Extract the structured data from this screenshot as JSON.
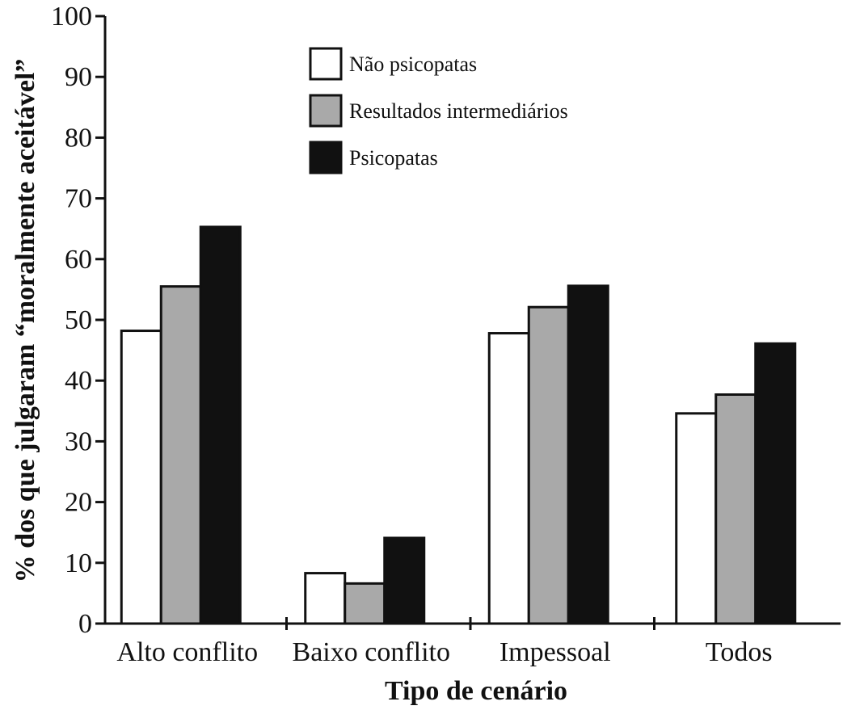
{
  "chart_data": {
    "type": "bar",
    "title": "",
    "xlabel": "Tipo de cenário",
    "ylabel": "% dos que julgaram “moralmente aceitável”",
    "ylim": [
      0,
      100
    ],
    "yticks": [
      0,
      10,
      20,
      30,
      40,
      50,
      60,
      70,
      80,
      90,
      100
    ],
    "categories": [
      "Alto conflito",
      "Baixo conflito",
      "Impessoal",
      "Todos"
    ],
    "legend_position": "top-center",
    "series": [
      {
        "name": "Não psicopatas",
        "color": "#ffffff",
        "values": [
          48.2,
          8.3,
          47.8,
          34.6
        ]
      },
      {
        "name": "Resultados intermediários",
        "color": "#a9a9a9",
        "values": [
          55.5,
          6.6,
          52.1,
          37.7
        ]
      },
      {
        "name": "Psicopatas",
        "color": "#111111",
        "values": [
          65.3,
          14.1,
          55.6,
          46.1
        ]
      }
    ]
  }
}
